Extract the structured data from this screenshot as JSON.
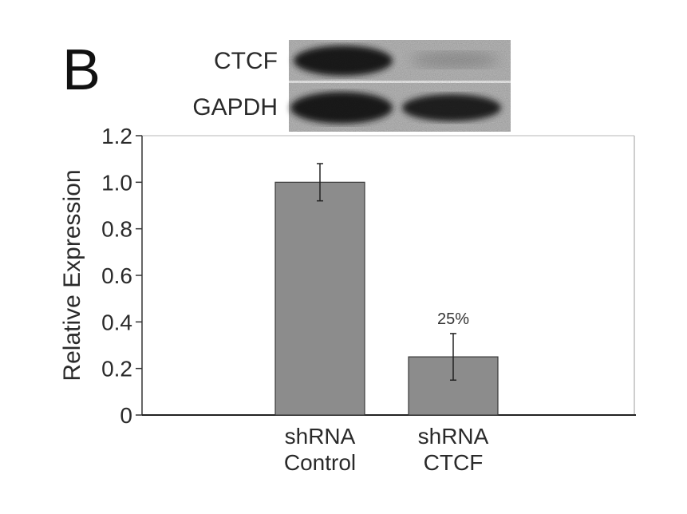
{
  "figure": {
    "panel_label": "B",
    "blot": {
      "rows": [
        {
          "label": "CTCF"
        },
        {
          "label": "GAPDH"
        }
      ]
    }
  },
  "chart_data": {
    "type": "bar",
    "categories": [
      [
        "shRNA",
        "Control"
      ],
      [
        "shRNA",
        "CTCF"
      ]
    ],
    "values": [
      1.0,
      0.25
    ],
    "errors": [
      0.08,
      0.1
    ],
    "data_labels": [
      "",
      "25%"
    ],
    "ylabel": "Relative Expression",
    "xlabel": "",
    "ylim": [
      0,
      1.2
    ],
    "yticks": [
      "0",
      "0.2",
      "0.4",
      "0.6",
      "0.8",
      "1.0",
      "1.2"
    ],
    "bar_color": "#8c8c8c",
    "grid": false,
    "legend": "none"
  }
}
